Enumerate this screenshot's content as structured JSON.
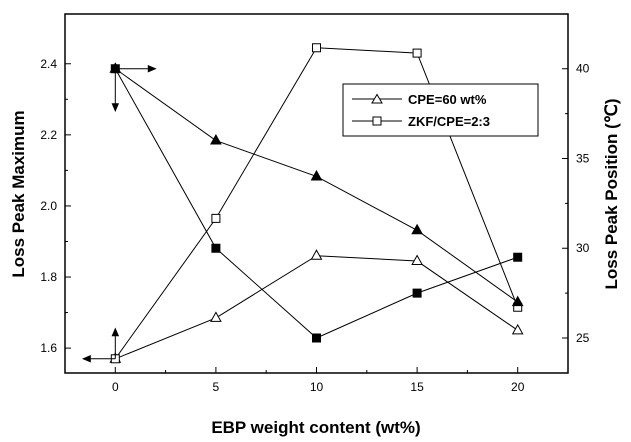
{
  "chart_data": {
    "type": "line",
    "xlabel": "EBP weight content (wt%)",
    "ylabel_left": "Loss Peak Maximum",
    "ylabel_right": "Loss Peak Position (℃)",
    "x_ticks": [
      "0",
      "5",
      "10",
      "15",
      "20"
    ],
    "y_left_ticks": [
      "1.6",
      "1.8",
      "2.0",
      "2.2",
      "2.4"
    ],
    "y_right_ticks": [
      "25",
      "30",
      "35",
      "40"
    ],
    "xlim": [
      -2.5,
      22.5
    ],
    "ylim_left": [
      1.53,
      2.54
    ],
    "ylim_right": [
      23.05,
      43.05
    ],
    "legend_position": "top-right",
    "series": [
      {
        "name": "CPE=60 wt%",
        "axis": "left",
        "marker": "triangle",
        "fill": "open",
        "x": [
          0,
          5,
          10,
          15,
          20
        ],
        "y": [
          1.57,
          1.685,
          1.86,
          1.845,
          1.65
        ]
      },
      {
        "name": "ZKF/CPE=2:3",
        "axis": "left",
        "marker": "square",
        "fill": "open",
        "x": [
          0,
          5,
          10,
          15,
          20
        ],
        "y": [
          1.57,
          1.965,
          2.445,
          2.43,
          1.715
        ]
      },
      {
        "name": "",
        "axis": "right",
        "marker": "triangle",
        "fill": "filled",
        "x": [
          0,
          5,
          10,
          15,
          20
        ],
        "y": [
          40.0,
          36.0,
          34.0,
          31.0,
          27.0
        ]
      },
      {
        "name": "",
        "axis": "right",
        "marker": "square",
        "fill": "filled",
        "x": [
          0,
          5,
          10,
          15,
          20
        ],
        "y": [
          40.0,
          30.0,
          25.0,
          27.5,
          29.5
        ]
      }
    ]
  }
}
